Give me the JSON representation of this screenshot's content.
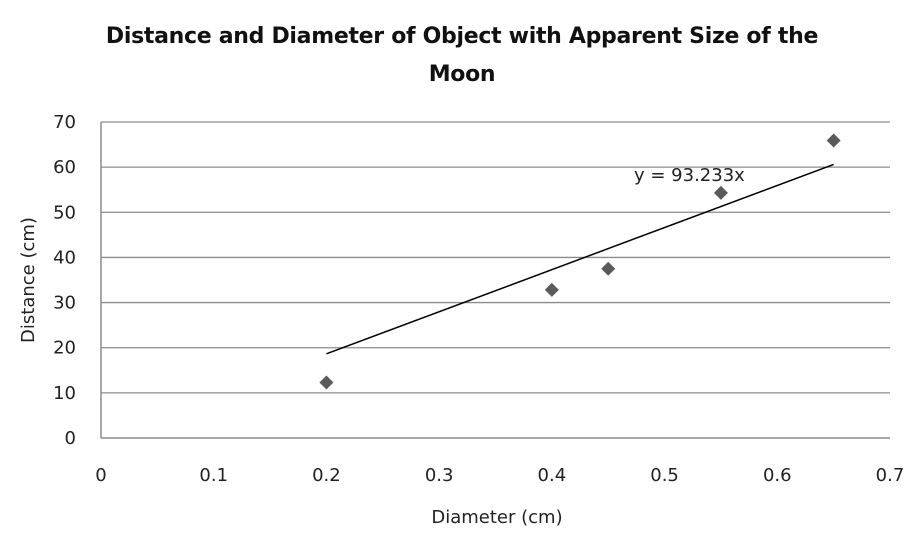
{
  "chart_data": {
    "type": "scatter",
    "title_lines": [
      "Distance and Diameter of Object with Apparent Size of the",
      "Moon"
    ],
    "xlabel": "Diameter (cm)",
    "ylabel": "Distance (cm)",
    "xlim": [
      0,
      0.7
    ],
    "ylim": [
      0,
      70
    ],
    "x_ticks": [
      "0",
      "0.1",
      "0.2",
      "0.3",
      "0.4",
      "0.5",
      "0.6",
      "0.7"
    ],
    "y_ticks": [
      "0",
      "10",
      "20",
      "30",
      "40",
      "50",
      "60",
      "70"
    ],
    "grid": "horizontal",
    "points": [
      {
        "x": 0.2,
        "y": 12.3
      },
      {
        "x": 0.4,
        "y": 32.8
      },
      {
        "x": 0.45,
        "y": 37.5
      },
      {
        "x": 0.55,
        "y": 54.3
      },
      {
        "x": 0.65,
        "y": 65.9
      }
    ],
    "trendline": {
      "slope": 93.233,
      "intercept": 0,
      "x_range": [
        0.2,
        0.65
      ],
      "equation": "y = 93.233x"
    },
    "marker_color": "#5a5a5a",
    "line_color": "#000000"
  }
}
